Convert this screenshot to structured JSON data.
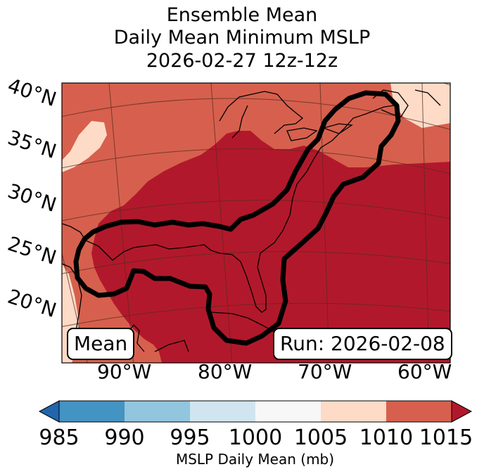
{
  "title": {
    "line1": "Ensemble Mean",
    "line2": "Daily Mean Minimum MSLP",
    "line3": "2026-02-27 12z-12z"
  },
  "map": {
    "region": "Eastern United States, Gulf of Mexico and western Atlantic",
    "lat_labels": [
      "40°N",
      "35°N",
      "30°N",
      "25°N",
      "20°N"
    ],
    "lon_labels": [
      "90°W",
      "80°W",
      "70°W",
      "60°W"
    ],
    "field_colors": {
      "1005-1010": "#fddbc7",
      "1010-1015": "#d6604d",
      ">1015": "#b2182b"
    },
    "contour": "1005 mb mean low-pressure contour along Gulf of Mexico and US east coast"
  },
  "labels": {
    "left": "Mean",
    "right": "Run: 2026-02-08"
  },
  "colorbar": {
    "ticks": [
      "985",
      "990",
      "995",
      "1000",
      "1005",
      "1010",
      "1015"
    ],
    "bins": [
      {
        "range": "<985",
        "color": "#2166ac"
      },
      {
        "range": "985-990",
        "color": "#4393c3"
      },
      {
        "range": "990-995",
        "color": "#92c5de"
      },
      {
        "range": "995-1000",
        "color": "#d1e5f0"
      },
      {
        "range": "1000-1005",
        "color": "#f7f7f7"
      },
      {
        "range": "1005-1010",
        "color": "#fddbc7"
      },
      {
        "range": "1010-1015",
        "color": "#d6604d"
      },
      {
        "range": ">1015",
        "color": "#b2182b"
      }
    ],
    "label": "MSLP Daily Mean (mb)"
  }
}
